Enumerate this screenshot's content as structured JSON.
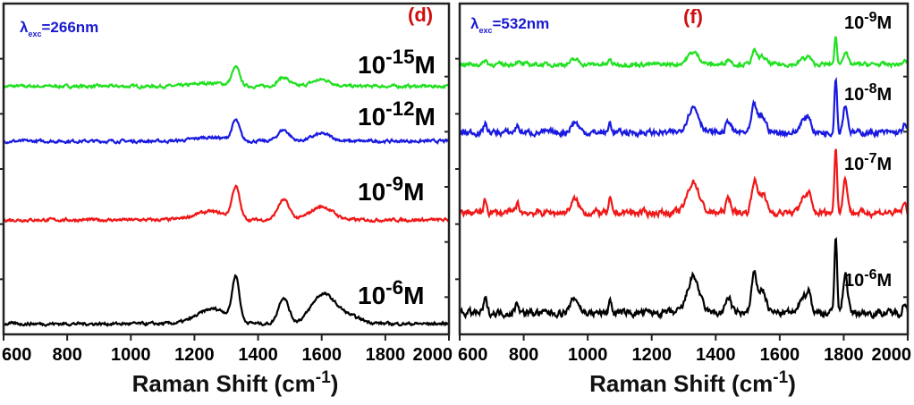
{
  "chart_data": [
    {
      "type": "line",
      "panel_label": "(d)",
      "excitation_label": {
        "symbol": "λ",
        "subscript": "exc",
        "value": "=266nm"
      },
      "xlabel": "Raman Shift (cm",
      "xlabel_superscript": "-1",
      "xlabel_suffix": ")",
      "ylabel": "",
      "xlim": [
        600,
        2000
      ],
      "ylim": [
        0,
        100
      ],
      "y_units": "arbitrary (stacked, offset)",
      "x_ticks": [
        "600",
        "800",
        "1000",
        "1200",
        "1400",
        "1600",
        "1800",
        "2000"
      ],
      "x_tick_values": [
        600,
        800,
        1000,
        1200,
        1400,
        1600,
        1800,
        2000
      ],
      "grid": false,
      "series": [
        {
          "name": "10-15M",
          "label_base": "10",
          "label_exp": "-15",
          "label_unit": "M",
          "color": "#22e022",
          "offset": 75,
          "peaks": [
            [
              1330,
              5.5,
              12
            ],
            [
              1480,
              2.7,
              18
            ],
            [
              1600,
              2.0,
              30
            ],
            [
              1250,
              1.0,
              50
            ]
          ]
        },
        {
          "name": "10-12M",
          "label_base": "10",
          "label_exp": "-12",
          "label_unit": "M",
          "color": "#1a1ae0",
          "offset": 58.4,
          "peaks": [
            [
              1330,
              6,
              12
            ],
            [
              1480,
              3.4,
              18
            ],
            [
              1600,
              2.2,
              30
            ],
            [
              1250,
              1.2,
              50
            ]
          ]
        },
        {
          "name": "10-9M",
          "label_base": "10",
          "label_exp": "-9",
          "label_unit": "M",
          "color": "#f01818",
          "offset": 34.6,
          "peaks": [
            [
              1330,
              9.5,
              12
            ],
            [
              1480,
              6,
              18
            ],
            [
              1600,
              4,
              35
            ],
            [
              1250,
              2.5,
              50
            ]
          ]
        },
        {
          "name": "10-6M",
          "label_base": "10",
          "label_exp": "-6",
          "label_unit": "M",
          "color": "#000000",
          "offset": 3.2,
          "peaks": [
            [
              1330,
              13,
              11
            ],
            [
              1480,
              8,
              16
            ],
            [
              1600,
              7.5,
              35
            ],
            [
              1260,
              4.5,
              50
            ],
            [
              1660,
              3,
              50
            ]
          ]
        }
      ]
    },
    {
      "type": "line",
      "panel_label": "(f)",
      "excitation_label": {
        "symbol": "λ",
        "subscript": "exc",
        "value": "=532nm"
      },
      "xlabel": "Raman Shift (cm",
      "xlabel_superscript": "-1",
      "xlabel_suffix": ")",
      "ylabel": "",
      "xlim": [
        600,
        2000
      ],
      "ylim": [
        0,
        100
      ],
      "y_units": "arbitrary (stacked, offset)",
      "x_ticks": [
        "600",
        "800",
        "1000",
        "1200",
        "1400",
        "1600",
        "1800",
        "2000"
      ],
      "x_tick_values": [
        600,
        800,
        1000,
        1200,
        1400,
        1600,
        1800,
        2000
      ],
      "grid": false,
      "series": [
        {
          "name": "10-9M",
          "label_base": "10",
          "label_exp": "-9",
          "label_unit": "M",
          "color": "#22e022",
          "offset": 81.6,
          "scale": 0.33
        },
        {
          "name": "10-8M",
          "label_base": "10",
          "label_exp": "-8",
          "label_unit": "M",
          "color": "#1a1ae0",
          "offset": 61,
          "scale": 0.7
        },
        {
          "name": "10-7M",
          "label_base": "10",
          "label_exp": "-7",
          "label_unit": "M",
          "color": "#f01818",
          "offset": 36.8,
          "scale": 0.85
        },
        {
          "name": "10-6M",
          "label_base": "10",
          "label_exp": "-6",
          "label_unit": "M",
          "color": "#000000",
          "offset": 6.5,
          "scale": 1.0
        }
      ],
      "peaks": [
        [
          680,
          4,
          5
        ],
        [
          780,
          3,
          6
        ],
        [
          960,
          4.5,
          12
        ],
        [
          1070,
          4.5,
          4
        ],
        [
          1330,
          11,
          18
        ],
        [
          1440,
          5,
          8
        ],
        [
          1520,
          11,
          8
        ],
        [
          1545,
          7,
          12
        ],
        [
          1670,
          5,
          8
        ],
        [
          1690,
          7,
          8
        ],
        [
          1775,
          24,
          4
        ],
        [
          1805,
          12,
          7
        ],
        [
          1990,
          3,
          6
        ]
      ]
    }
  ]
}
